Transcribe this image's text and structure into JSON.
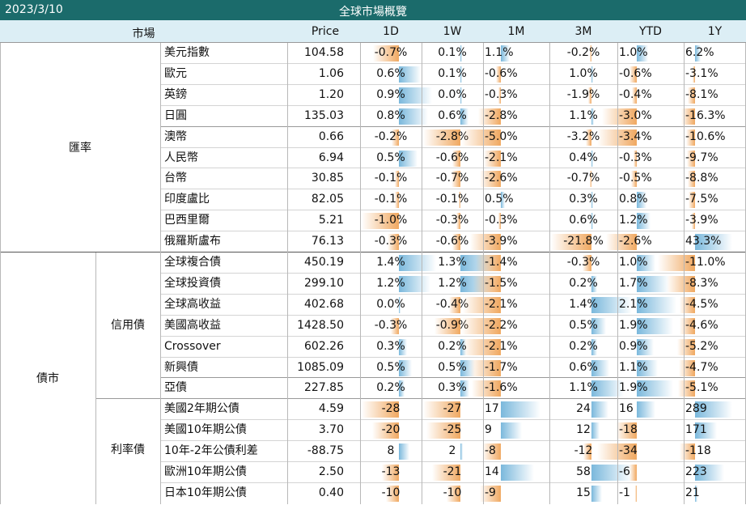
{
  "header": {
    "date": "2023/3/10",
    "title": "全球市場概覽"
  },
  "columns": {
    "market": "市場",
    "price": "Price",
    "c1d": "1D",
    "c1w": "1W",
    "c1m": "1M",
    "c3m": "3M",
    "cytd": "YTD",
    "c1y": "1Y"
  },
  "colors": {
    "title_bg": "#1b6b6b",
    "header_bg": "#dceef5",
    "positive_bar": "#7ab8dc",
    "negative_bar": "#f0a860"
  },
  "groups": {
    "fx": "匯率",
    "bond": "債市",
    "credit": "信用債",
    "rates": "利率債"
  },
  "fx_rows": [
    {
      "name": "美元指數",
      "price": "104.58",
      "d1": "-0.7%",
      "w1": "0.1%",
      "m1": "1.1%",
      "m3": "-0.2%",
      "ytd": "1.0%",
      "y1": "6.2%"
    },
    {
      "name": "歐元",
      "price": "1.06",
      "d1": "0.6%",
      "w1": "0.1%",
      "m1": "-0.6%",
      "m3": "1.0%",
      "ytd": "-0.6%",
      "y1": "-3.1%"
    },
    {
      "name": "英鎊",
      "price": "1.20",
      "d1": "0.9%",
      "w1": "0.0%",
      "m1": "-0.3%",
      "m3": "-1.9%",
      "ytd": "-0.4%",
      "y1": "-8.1%"
    },
    {
      "name": "日圓",
      "price": "135.03",
      "d1": "0.8%",
      "w1": "0.6%",
      "m1": "-2.8%",
      "m3": "1.1%",
      "ytd": "-3.0%",
      "y1": "-16.3%"
    },
    {
      "name": "澳幣",
      "price": "0.66",
      "d1": "-0.2%",
      "w1": "-2.8%",
      "m1": "-5.0%",
      "m3": "-3.2%",
      "ytd": "-3.4%",
      "y1": "-10.6%"
    },
    {
      "name": "人民幣",
      "price": "6.94",
      "d1": "0.5%",
      "w1": "-0.6%",
      "m1": "-2.1%",
      "m3": "0.4%",
      "ytd": "-0.3%",
      "y1": "-9.7%"
    },
    {
      "name": "台幣",
      "price": "30.85",
      "d1": "-0.1%",
      "w1": "-0.7%",
      "m1": "-2.6%",
      "m3": "-0.7%",
      "ytd": "-0.5%",
      "y1": "-8.8%"
    },
    {
      "name": "印度盧比",
      "price": "82.05",
      "d1": "-0.1%",
      "w1": "-0.1%",
      "m1": "0.5%",
      "m3": "0.3%",
      "ytd": "0.8%",
      "y1": "-7.5%"
    },
    {
      "name": "巴西里爾",
      "price": "5.21",
      "d1": "-1.0%",
      "w1": "-0.3%",
      "m1": "-0.3%",
      "m3": "0.6%",
      "ytd": "1.2%",
      "y1": "-3.9%"
    },
    {
      "name": "俄羅斯盧布",
      "price": "76.13",
      "d1": "-0.3%",
      "w1": "-0.6%",
      "m1": "-3.9%",
      "m3": "-21.8%",
      "ytd": "-2.6%",
      "y1": "43.3%"
    }
  ],
  "credit_rows": [
    {
      "name": "全球複合債",
      "price": "450.19",
      "d1": "1.4%",
      "w1": "1.3%",
      "m1": "-1.4%",
      "m3": "-0.3%",
      "ytd": "1.0%",
      "y1": "-11.0%"
    },
    {
      "name": "全球投資債",
      "price": "299.10",
      "d1": "1.2%",
      "w1": "1.2%",
      "m1": "-1.5%",
      "m3": "0.2%",
      "ytd": "1.7%",
      "y1": "-8.3%"
    },
    {
      "name": "全球高收益",
      "price": "402.68",
      "d1": "0.0%",
      "w1": "-0.4%",
      "m1": "-2.1%",
      "m3": "1.4%",
      "ytd": "2.1%",
      "y1": "-4.5%"
    },
    {
      "name": "美國高收益",
      "price": "1428.50",
      "d1": "-0.3%",
      "w1": "-0.9%",
      "m1": "-2.2%",
      "m3": "0.5%",
      "ytd": "1.9%",
      "y1": "-4.6%"
    },
    {
      "name": "Crossover",
      "price": "602.26",
      "d1": "0.3%",
      "w1": "0.2%",
      "m1": "-2.1%",
      "m3": "0.2%",
      "ytd": "0.9%",
      "y1": "-5.2%"
    },
    {
      "name": "新興債",
      "price": "1085.09",
      "d1": "0.5%",
      "w1": "0.5%",
      "m1": "-1.7%",
      "m3": "0.6%",
      "ytd": "1.1%",
      "y1": "-4.7%"
    },
    {
      "name": "亞債",
      "price": "227.85",
      "d1": "0.2%",
      "w1": "0.3%",
      "m1": "-1.6%",
      "m3": "1.1%",
      "ytd": "1.9%",
      "y1": "-5.1%"
    }
  ],
  "rate_rows": [
    {
      "name": "美國2年期公債",
      "price": "4.59",
      "d1": "-28",
      "w1": "-27",
      "m1": "17",
      "m3": "24",
      "ytd": "16",
      "y1": "289"
    },
    {
      "name": "美國10年期公債",
      "price": "3.70",
      "d1": "-20",
      "w1": "-25",
      "m1": "9",
      "m3": "12",
      "ytd": "-18",
      "y1": "171"
    },
    {
      "name": "10年-2年公債利差",
      "price": "-88.75",
      "d1": "8",
      "w1": "2",
      "m1": "-8",
      "m3": "-12",
      "ytd": "-34",
      "y1": "-118"
    },
    {
      "name": "歐洲10年期公債",
      "price": "2.50",
      "d1": "-13",
      "w1": "-21",
      "m1": "14",
      "m3": "58",
      "ytd": "-6",
      "y1": "223"
    },
    {
      "name": "日本10年期公債",
      "price": "0.40",
      "d1": "-10",
      "w1": "-10",
      "m1": "-9",
      "m3": "15",
      "ytd": "-1",
      "y1": "21"
    }
  ]
}
